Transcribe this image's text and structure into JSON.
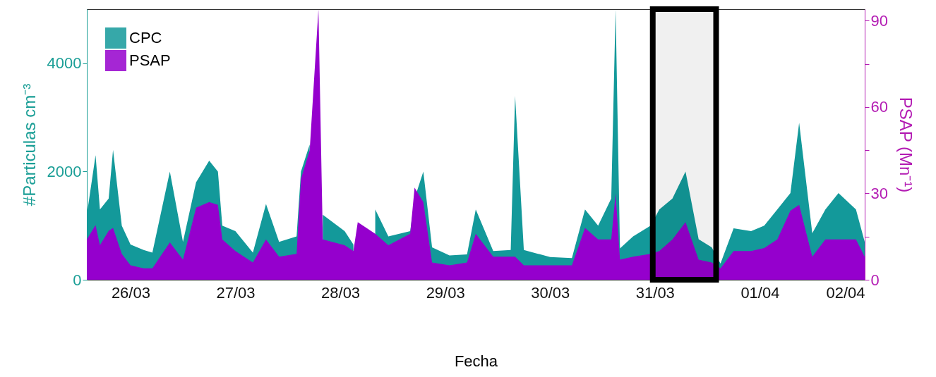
{
  "chart_data": {
    "type": "area",
    "xlabel": "Fecha",
    "ylabel": "#Particulas cm⁻³",
    "y2label": "PSAP (Mn⁻¹)",
    "x": [
      "--03-25T14:00",
      "--03-25T16:00",
      "--03-25T17:00",
      "--03-25T19:00",
      "--03-25T20:00",
      "--03-25T22:00",
      "--03-26T00:00",
      "--03-26T03:00",
      "--03-26T05:00",
      "--03-26T09:00",
      "--03-26T12:00",
      "--03-26T15:00",
      "--03-26T18:00",
      "--03-26T20:00",
      "--03-26T21:00",
      "--03-27T00:00",
      "--03-27T04:00",
      "--03-27T07:00",
      "--03-27T10:00",
      "--03-27T14:00",
      "--03-27T15:00",
      "--03-27T17:00",
      "--03-27T19:00",
      "--03-27T20:00",
      "--03-28T01:00",
      "--03-28T03:00",
      "--03-28T04:00",
      "--03-28T08:00",
      "--03-28T11:00",
      "--03-28T16:00",
      "--03-28T17:00",
      "--03-28T19:00",
      "--03-28T21:00",
      "--03-29T01:00",
      "--03-29T05:00",
      "--03-29T07:00",
      "--03-29T11:00",
      "--03-29T15:00",
      "--03-29T16:00",
      "--03-29T18:00",
      "--03-30T00:00",
      "--03-30T05:00",
      "--03-30T08:00",
      "--03-30T11:00",
      "--03-30T14:00",
      "--03-30T15:00",
      "--03-30T16:00",
      "--03-30T19:00",
      "--03-30T23:00",
      "--03-31T01:00",
      "--03-31T04:00",
      "--03-31T07:00",
      "--03-31T10:00",
      "--03-31T13:00",
      "--03-31T15:00",
      "--03-31T18:00",
      "--03-31T22:00",
      "--04-01T01:00",
      "--04-01T04:00",
      "--04-01T07:00",
      "--04-01T09:00",
      "--04-01T12:00",
      "--04-01T15:00",
      "--04-01T18:00",
      "--04-01T22:00",
      "--04-02T00:00"
    ],
    "series": [
      {
        "name": "CPC",
        "color": "#13999a",
        "values": [
          1200,
          2300,
          1300,
          1500,
          2400,
          1000,
          650,
          550,
          500,
          2000,
          700,
          1800,
          2200,
          2000,
          1000,
          900,
          500,
          1400,
          700,
          800,
          2000,
          2500,
          null,
          1200,
          900,
          650,
          null,
          1300,
          800,
          900,
          1500,
          2000,
          600,
          450,
          470,
          1300,
          530,
          550,
          3400,
          550,
          420,
          400,
          1300,
          1000,
          1500,
          5000,
          580,
          800,
          1000,
          1300,
          1500,
          2000,
          750,
          600,
          300,
          950,
          900,
          1000,
          1300,
          1600,
          2900,
          860,
          1300,
          1600,
          1300,
          700
        ]
      },
      {
        "name": "PSAP",
        "color": "#9500cd",
        "axis": "y2",
        "values": [
          14,
          19,
          12,
          17,
          18,
          9,
          5,
          4,
          4,
          13,
          7,
          25,
          27,
          26,
          14,
          10,
          6,
          14,
          8,
          9,
          35,
          45,
          94,
          14,
          12,
          10,
          20,
          16,
          12,
          16,
          32,
          27,
          6,
          5,
          6,
          16,
          8,
          8,
          8,
          5,
          5,
          5,
          18,
          14,
          14,
          30,
          7,
          8,
          9,
          10,
          14,
          20,
          7,
          6,
          4,
          10,
          10,
          11,
          14,
          24,
          26,
          8,
          14,
          14,
          14,
          8
        ]
      }
    ],
    "xlim": [
      "--03-25T14:00",
      "--04-02T00:00"
    ],
    "xticks": [
      {
        "value": "--03-26",
        "label": "26/03"
      },
      {
        "value": "--03-27",
        "label": "27/03"
      },
      {
        "value": "--03-28",
        "label": "28/03"
      },
      {
        "value": "--03-29",
        "label": "29/03"
      },
      {
        "value": "--03-30",
        "label": "30/03"
      },
      {
        "value": "--03-31",
        "label": "31/03"
      },
      {
        "value": "--04-01",
        "label": "01/04"
      },
      {
        "value": "--04-02",
        "label": "02/04"
      }
    ],
    "ylim": [
      0,
      5000
    ],
    "yticks": [
      0,
      2000,
      4000
    ],
    "y2lim": [
      0,
      94
    ],
    "y2ticks": [
      0,
      {
        "value": 15,
        "label": null
      },
      30,
      {
        "value": 45,
        "label": null
      },
      60,
      {
        "value": 75,
        "label": null
      },
      90
    ],
    "bands": [
      {
        "axis": "x",
        "from": "--03-30T23:30",
        "to": "--03-31T14:00",
        "label": null,
        "color": "#000000"
      }
    ],
    "legend": "top left"
  }
}
